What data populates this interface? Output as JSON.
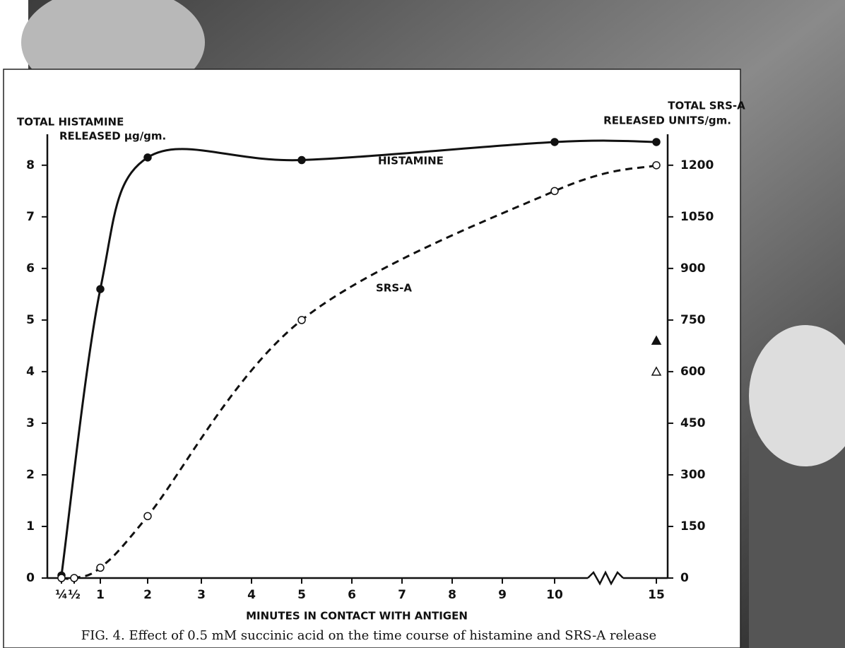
{
  "chart_data": {
    "type": "line",
    "title": "FIG. 4. Effect of 0.5 mM succinic acid on the time course of histamine and SRS-A release",
    "xlabel": "MINUTES IN CONTACT WITH ANTIGEN",
    "ylabel": [
      "TOTAL HISTAMINE",
      "RELEASED µg/gm."
    ],
    "y2label": [
      "TOTAL SRS-A",
      "RELEASED UNITS/gm."
    ],
    "xlim": [
      0.25,
      15
    ],
    "xticks": [
      {
        "value": 0.25,
        "label": "¼"
      },
      {
        "value": 0.5,
        "label": "½"
      },
      1,
      2,
      3,
      4,
      5,
      6,
      7,
      8,
      9,
      10,
      15
    ],
    "ylim": [
      0,
      8.6
    ],
    "yticks": [
      0,
      1,
      2,
      3,
      4,
      5,
      6,
      7,
      8
    ],
    "y2lim": [
      0,
      1290
    ],
    "y2ticks": [
      0,
      150,
      300,
      450,
      600,
      750,
      900,
      1050,
      1200
    ],
    "series": [
      {
        "name": "HISTAMINE",
        "color": "#111111",
        "dash": false,
        "filled": true,
        "x": [
          0.25,
          1,
          2,
          5,
          10,
          15
        ],
        "values": [
          0.05,
          5.6,
          8.15,
          8.1,
          8.45,
          8.45
        ]
      },
      {
        "name": "SRS-A",
        "color": "#111111",
        "dash": true,
        "filled": false,
        "axis": "y2",
        "x": [
          0.25,
          0.5,
          1,
          2,
          5,
          10,
          15
        ],
        "values": [
          0,
          0,
          30,
          180,
          750,
          1125,
          1200
        ]
      }
    ],
    "triangles": [
      {
        "x": 15,
        "value": 4.6,
        "filled": true
      },
      {
        "x": 15,
        "value": 600,
        "filled": false,
        "axis": "y2"
      }
    ]
  }
}
